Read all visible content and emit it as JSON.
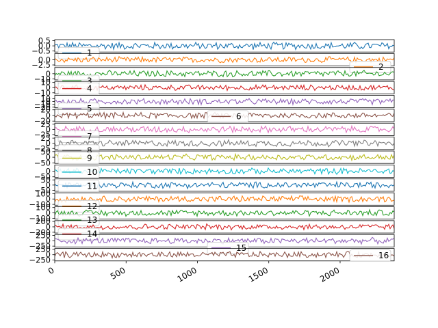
{
  "chart_data": {
    "type": "line",
    "layout": "16 vertically stacked subplots sharing the x axis",
    "x": {
      "range": [
        0,
        2379
      ],
      "ticks": [
        0,
        500,
        1000,
        1500,
        2000
      ],
      "tick_labels": [
        "0",
        "500",
        "1000",
        "1500",
        "2000"
      ],
      "tick_rotation_deg": 30
    },
    "grid": false,
    "series": [
      {
        "name": "1",
        "color": "#1f77b4",
        "ylim": [
          -0.6,
          0.6
        ],
        "amplitude": 0.4,
        "yticks": [
          -0.5,
          0.0,
          0.5
        ],
        "ytick_labels": [
          "−0.5",
          "0.0",
          "0.5"
        ],
        "legend": "lower-left"
      },
      {
        "name": "2",
        "color": "#ff7f0e",
        "ylim": [
          -3,
          3
        ],
        "amplitude": 1.6,
        "yticks": [
          -2.5,
          0.0
        ],
        "ytick_labels": [
          "−2.5",
          "0.0"
        ],
        "legend": "lower-right"
      },
      {
        "name": "3",
        "color": "#2ca02c",
        "ylim": [
          -12,
          12
        ],
        "amplitude": 7,
        "yticks": [
          -10,
          0
        ],
        "ytick_labels": [
          "−10",
          "0"
        ],
        "legend": "lower-left"
      },
      {
        "name": "4",
        "color": "#d62728",
        "ylim": [
          -12,
          12
        ],
        "amplitude": 6,
        "yticks": [
          -10,
          0,
          10
        ],
        "ytick_labels": [
          "−10",
          "0",
          "10"
        ],
        "legend": "upper-left"
      },
      {
        "name": "5",
        "color": "#9467bd",
        "ylim": [
          -22,
          22
        ],
        "amplitude": 12,
        "yticks": [
          -20,
          -10,
          0,
          10
        ],
        "ytick_labels": [
          "−20",
          "−10",
          "0",
          "10"
        ],
        "legend": "lower-left"
      },
      {
        "name": "6",
        "color": "#8c564b",
        "ylim": [
          -22,
          22
        ],
        "amplitude": 12,
        "yticks": [
          -20,
          0,
          20
        ],
        "ytick_labels": [
          "−20",
          "0",
          "20"
        ],
        "legend": "upper-center"
      },
      {
        "name": "7",
        "color": "#e377c2",
        "ylim": [
          -30,
          30
        ],
        "amplitude": 18,
        "yticks": [
          -25,
          0,
          25
        ],
        "ytick_labels": [
          "−25",
          "0",
          "25"
        ],
        "legend": "lower-left"
      },
      {
        "name": "8",
        "color": "#7f7f7f",
        "ylim": [
          -30,
          30
        ],
        "amplitude": 18,
        "yticks": [
          -25,
          0,
          25
        ],
        "ytick_labels": [
          "−25",
          "0",
          "25"
        ],
        "legend": "lower-left"
      },
      {
        "name": "9",
        "color": "#bcbd22",
        "ylim": [
          -55,
          55
        ],
        "amplitude": 30,
        "yticks": [
          -50,
          0,
          50
        ],
        "ytick_labels": [
          "−50",
          "0",
          "50"
        ],
        "legend": "upper-left"
      },
      {
        "name": "10",
        "color": "#17becf",
        "ylim": [
          -55,
          55
        ],
        "amplitude": 30,
        "yticks": [
          -50,
          0
        ],
        "ytick_labels": [
          "−50",
          "0"
        ],
        "legend": "upper-left"
      },
      {
        "name": "11",
        "color": "#1f77b4",
        "ylim": [
          -60,
          60
        ],
        "amplitude": 35,
        "yticks": [
          -50,
          0,
          50
        ],
        "ytick_labels": [
          "−50",
          "0",
          "50"
        ],
        "legend": "upper-left"
      },
      {
        "name": "12",
        "color": "#ff7f0e",
        "ylim": [
          -115,
          115
        ],
        "amplitude": 65,
        "yticks": [
          -100,
          0,
          100
        ],
        "ytick_labels": [
          "−100",
          "0",
          "100"
        ],
        "legend": "lower-left"
      },
      {
        "name": "13",
        "color": "#2ca02c",
        "ylim": [
          -115,
          115
        ],
        "amplitude": 65,
        "yticks": [
          -100,
          0,
          100
        ],
        "ytick_labels": [
          "−100",
          "0",
          "100"
        ],
        "legend": "lower-left"
      },
      {
        "name": "14",
        "color": "#d62728",
        "ylim": [
          -230,
          230
        ],
        "amplitude": 120,
        "yticks": [
          -200,
          0,
          200
        ],
        "ytick_labels": [
          "−200",
          "0",
          "200"
        ],
        "legend": "lower-left"
      },
      {
        "name": "15",
        "color": "#9467bd",
        "ylim": [
          -290,
          290
        ],
        "amplitude": 160,
        "yticks": [
          -250,
          0,
          250
        ],
        "ytick_labels": [
          "−250",
          "0",
          "250"
        ],
        "legend": "lower-center"
      },
      {
        "name": "16",
        "color": "#8c564b",
        "ylim": [
          -290,
          290
        ],
        "amplitude": 160,
        "yticks": [
          -250,
          0,
          250
        ],
        "ytick_labels": [
          "−250",
          "0",
          "250"
        ],
        "legend": "upper-right"
      }
    ]
  }
}
